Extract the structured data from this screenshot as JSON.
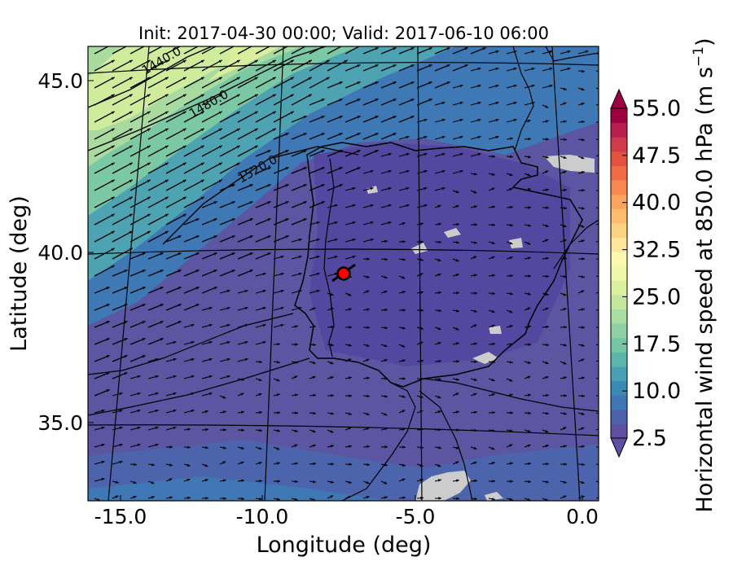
{
  "title": "Init: 2017-04-30 00:00; Valid: 2017-06-10 06:00",
  "x_axis": {
    "label": "Longitude (deg)",
    "ticks": [
      {
        "value": -15,
        "label": "-15.0"
      },
      {
        "value": -10,
        "label": "-10.0"
      },
      {
        "value": -5,
        "label": "-5.0"
      },
      {
        "value": 0,
        "label": "0.0"
      }
    ]
  },
  "y_axis": {
    "label": "Latitude (deg)",
    "ticks": [
      {
        "value": 45,
        "label": "45.0"
      },
      {
        "value": 40,
        "label": "40.0"
      },
      {
        "value": 35,
        "label": "35.0"
      }
    ]
  },
  "colorbar": {
    "label_text": "Horizontal wind speed at 850.0 hPa (m s",
    "label_exp": "−1",
    "label_close": ")",
    "range": [
      2.5,
      55.0
    ],
    "extend": "both",
    "tick_labels": [
      "55.0",
      "47.5",
      "40.0",
      "32.5",
      "25.0",
      "17.5",
      "10.0",
      "2.5"
    ],
    "colors": [
      "#5e4fa2",
      "#4b62ab",
      "#3f77b4",
      "#3a8ab8",
      "#47a0b3",
      "#5bb5a9",
      "#73c7a4",
      "#8fd1a4",
      "#aadda2",
      "#c4e79e",
      "#dbf09d",
      "#eef8a8",
      "#fbf8b0",
      "#fee79a",
      "#fed283",
      "#fdbb6c",
      "#fca45d",
      "#f88a51",
      "#f06c44",
      "#e3523f",
      "#cf3b4b",
      "#b81d4b",
      "#9e0142"
    ]
  },
  "contour_labels": [
    "1440.0",
    "1480.0",
    "1520.0"
  ],
  "marker": {
    "lon": -7.7,
    "lat": 39.4,
    "color": "#ff0000"
  }
}
